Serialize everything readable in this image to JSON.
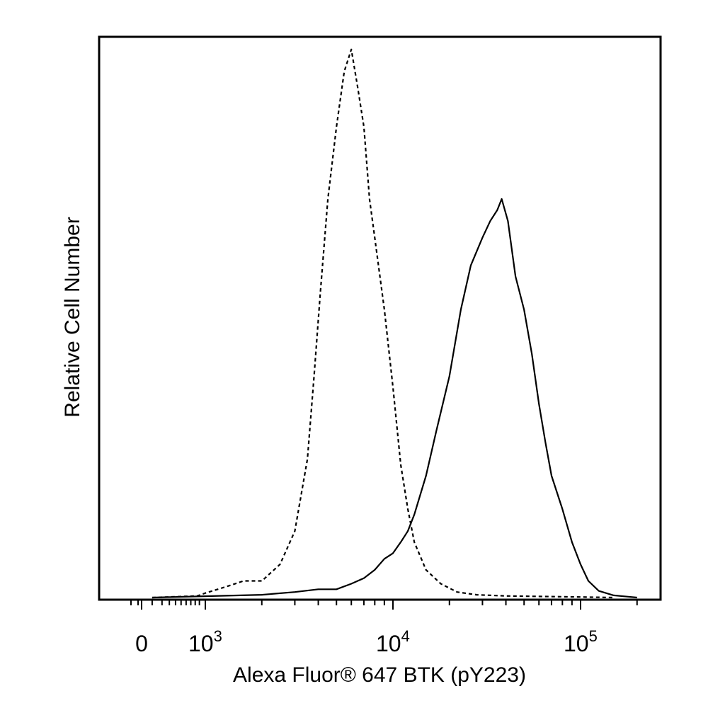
{
  "chart_data": {
    "type": "line",
    "xlabel": "Alexa Fluor® 647 BTK (pY223)",
    "ylabel": "Relative Cell Number",
    "x_scale": "biexponential (linear near zero, log above)",
    "xlim": [
      -200,
      262144
    ],
    "ylim": [
      0,
      100
    ],
    "grid": false,
    "legend": "none",
    "x_tick_labels": [
      {
        "value": 0,
        "base": "0",
        "exp": ""
      },
      {
        "value": 1000,
        "base": "10",
        "exp": "3"
      },
      {
        "value": 10000,
        "base": "10",
        "exp": "4"
      },
      {
        "value": 100000,
        "base": "10",
        "exp": "5"
      }
    ],
    "series": [
      {
        "style": "dashed",
        "color": "#000000",
        "x": [
          50,
          800,
          1000,
          1300,
          1600,
          2000,
          2500,
          3000,
          3500,
          3800,
          4100,
          4500,
          5000,
          5500,
          6000,
          6500,
          7000,
          7500,
          8000,
          9000,
          10000,
          11000,
          12000,
          13000,
          15000,
          18000,
          22000,
          28000,
          40000,
          60000,
          100000,
          150000
        ],
        "y": [
          0,
          0.3,
          0.8,
          2,
          3,
          3,
          6,
          12,
          25,
          40,
          55,
          72,
          85,
          95,
          99,
          92,
          85,
          72,
          65,
          52,
          38,
          24,
          16,
          10,
          5,
          2.5,
          1,
          0.5,
          0.3,
          0.2,
          0.1,
          0
        ]
      },
      {
        "style": "solid",
        "color": "#000000",
        "x": [
          50,
          2000,
          3000,
          4000,
          5000,
          6000,
          7000,
          8000,
          9000,
          10000,
          11000,
          12000,
          13000,
          15000,
          17000,
          20000,
          23000,
          26000,
          30000,
          33000,
          36000,
          38000,
          41000,
          45000,
          50000,
          55000,
          60000,
          65000,
          70000,
          80000,
          90000,
          100000,
          110000,
          125000,
          150000,
          200000
        ],
        "y": [
          0,
          0.5,
          1,
          1.5,
          1.5,
          2.5,
          3.5,
          5,
          7,
          8,
          10,
          12,
          15,
          22,
          30,
          40,
          52,
          60,
          65,
          68,
          70,
          72,
          68,
          58,
          52,
          44,
          35,
          28,
          22,
          16,
          10,
          6,
          3,
          1.2,
          0.4,
          0
        ]
      }
    ]
  }
}
